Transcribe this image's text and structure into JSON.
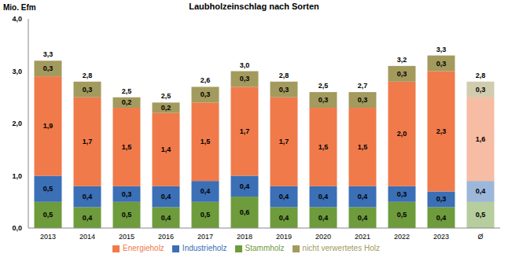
{
  "chart_data": {
    "type": "bar",
    "title": "Laubholzeinschlag nach Sorten",
    "y_label": "Mio. Efm",
    "categories": [
      "2013",
      "2014",
      "2015",
      "2016",
      "2017",
      "2018",
      "2019",
      "2020",
      "2021",
      "2022",
      "2023",
      "Ø"
    ],
    "stacked": true,
    "data_labels": true,
    "grid": false,
    "legend": "bottom",
    "ylim": [
      0,
      4
    ],
    "yticks": [
      {
        "value": 0,
        "label": "0,0"
      },
      {
        "value": 1,
        "label": "1,0"
      },
      {
        "value": 2,
        "label": "2,0"
      },
      {
        "value": 3,
        "label": "3,0"
      },
      {
        "value": 4,
        "label": "4,0"
      }
    ],
    "series": [
      {
        "name": "Stammholz",
        "color": "#6e9b3c",
        "values": [
          0.5,
          0.4,
          0.5,
          0.4,
          0.5,
          0.6,
          0.4,
          0.4,
          0.4,
          0.5,
          0.4,
          0.5
        ],
        "value_labels": [
          "0,5",
          "0,4",
          "0,5",
          "0,4",
          "0,5",
          "0,6",
          "0,4",
          "0,4",
          "0,4",
          "0,5",
          "0,4",
          "0,5"
        ]
      },
      {
        "name": "Industrieholz",
        "color": "#3b6fb6",
        "values": [
          0.5,
          0.4,
          0.3,
          0.4,
          0.4,
          0.4,
          0.4,
          0.4,
          0.4,
          0.3,
          0.3,
          0.4
        ],
        "value_labels": [
          "0,5",
          "0,4",
          "0,3",
          "0,4",
          "0,4",
          "0,4",
          "0,4",
          "0,4",
          "0,4",
          "0,3",
          "0,3",
          "0,4"
        ]
      },
      {
        "name": "Energieholz",
        "color": "#f07a4a",
        "values": [
          1.9,
          1.7,
          1.5,
          1.4,
          1.5,
          1.7,
          1.7,
          1.5,
          1.5,
          2.0,
          2.3,
          1.6
        ],
        "value_labels": [
          "1,9",
          "1,7",
          "1,5",
          "1,4",
          "1,5",
          "1,7",
          "1,7",
          "1,5",
          "1,5",
          "2,0",
          "2,3",
          "1,6"
        ]
      },
      {
        "name": "nicht verwertetes Holz",
        "color": "#a39a5e",
        "values": [
          0.3,
          0.3,
          0.2,
          0.2,
          0.3,
          0.3,
          0.3,
          0.3,
          0.3,
          0.3,
          0.3,
          0.3
        ],
        "value_labels": [
          "0,3",
          "0,3",
          "0,2",
          "0,2",
          "0,3",
          "0,3",
          "0,3",
          "0,3",
          "0,3",
          "0,3",
          "0,3",
          "0,3"
        ]
      }
    ],
    "totals": [
      3.3,
      2.8,
      2.5,
      2.5,
      2.6,
      3.0,
      2.8,
      2.5,
      2.7,
      3.2,
      3.3,
      2.8
    ],
    "totals_labels": [
      "3,3",
      "2,8",
      "2,5",
      "2,5",
      "2,6",
      "3,0",
      "2,8",
      "2,5",
      "2,7",
      "3,2",
      "3,3",
      "2,8"
    ]
  }
}
